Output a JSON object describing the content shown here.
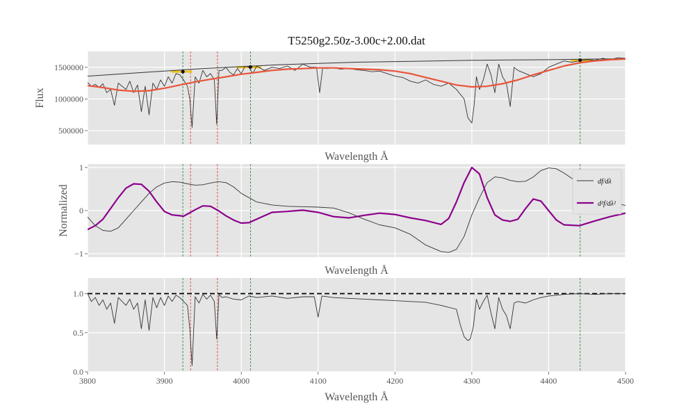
{
  "chart_data": {
    "type": "line",
    "title": "T5250g2.50z-3.00c+2.00.dat",
    "xlim": [
      3800,
      4500
    ],
    "xticks": [
      3800,
      3900,
      4000,
      4100,
      4200,
      4300,
      4400,
      4500
    ],
    "grid": true,
    "marker_lines": {
      "green": [
        3924,
        4012,
        4441
      ],
      "red": [
        3934,
        3969
      ]
    },
    "panels": [
      {
        "id": "flux",
        "ylabel": "Flux",
        "xlabel": "Wavelength Å",
        "ylim": [
          280000,
          1750000
        ],
        "yticks": [
          500000,
          1000000,
          1500000
        ],
        "ytick_labels": [
          "500000",
          "1000000",
          "1500000"
        ],
        "series": [
          {
            "key": "spectrum",
            "color": "#333333",
            "width": 0.9,
            "x": [
              3800,
              3805,
              3810,
              3815,
              3820,
              3825,
              3830,
              3835,
              3840,
              3845,
              3850,
              3855,
              3860,
              3865,
              3870,
              3875,
              3880,
              3885,
              3890,
              3895,
              3900,
              3905,
              3910,
              3915,
              3920,
              3925,
              3930,
              3933,
              3936,
              3940,
              3945,
              3950,
              3955,
              3960,
              3965,
              3968,
              3971,
              3975,
              3980,
              3985,
              3990,
              3995,
              4000,
              4005,
              4010,
              4015,
              4020,
              4030,
              4040,
              4050,
              4060,
              4070,
              4080,
              4090,
              4098,
              4102,
              4106,
              4110,
              4120,
              4130,
              4140,
              4150,
              4160,
              4170,
              4180,
              4190,
              4200,
              4210,
              4220,
              4230,
              4240,
              4250,
              4260,
              4270,
              4280,
              4290,
              4295,
              4300,
              4303,
              4306,
              4310,
              4315,
              4320,
              4325,
              4330,
              4335,
              4340,
              4345,
              4350,
              4355,
              4360,
              4370,
              4380,
              4390,
              4400,
              4410,
              4420,
              4430,
              4440,
              4450,
              4460,
              4470,
              4480,
              4490,
              4500
            ],
            "y": [
              1260000,
              1200000,
              1230000,
              1180000,
              1240000,
              1100000,
              1150000,
              900000,
              1250000,
              1200000,
              1150000,
              1280000,
              1100000,
              1220000,
              800000,
              1200000,
              750000,
              1250000,
              1150000,
              1300000,
              1200000,
              1350000,
              1250000,
              1400000,
              1380000,
              1300000,
              1200000,
              1000000,
              550000,
              1350000,
              1250000,
              1450000,
              1350000,
              1400000,
              1300000,
              600000,
              1450000,
              1450000,
              1500000,
              1420000,
              1380000,
              1480000,
              1400000,
              1520000,
              1500000,
              1400000,
              1520000,
              1450000,
              1500000,
              1480000,
              1520000,
              1450000,
              1550000,
              1500000,
              1500000,
              1100000,
              1490000,
              1480000,
              1490000,
              1470000,
              1480000,
              1460000,
              1450000,
              1430000,
              1440000,
              1400000,
              1360000,
              1340000,
              1280000,
              1250000,
              1300000,
              1230000,
              1200000,
              1250000,
              1150000,
              1000000,
              700000,
              620000,
              900000,
              1350000,
              1150000,
              1300000,
              1550000,
              1380000,
              1100000,
              1550000,
              1350000,
              1250000,
              880000,
              1500000,
              1450000,
              1400000,
              1350000,
              1400000,
              1500000,
              1550000,
              1600000,
              1580000,
              1600000,
              1620000,
              1610000,
              1640000,
              1620000,
              1650000,
              1640000
            ]
          },
          {
            "key": "envelope",
            "color": "#333333",
            "width": 1.0,
            "x": [
              3800,
              3850,
              3900,
              3950,
              4000,
              4050,
              4100,
              4150,
              4200,
              4250,
              4300,
              4350,
              4400,
              4450,
              4500
            ],
            "y": [
              1360000,
              1400000,
              1440000,
              1480000,
              1510000,
              1540000,
              1560000,
              1580000,
              1590000,
              1600000,
              1610000,
              1615000,
              1620000,
              1628000,
              1635000
            ]
          },
          {
            "key": "continuum_fit",
            "color": "#e8543a",
            "width": 2.2,
            "x": [
              3800,
              3820,
              3840,
              3860,
              3880,
              3900,
              3920,
              3940,
              3960,
              3980,
              4000,
              4020,
              4040,
              4060,
              4080,
              4100,
              4120,
              4140,
              4160,
              4180,
              4200,
              4220,
              4240,
              4260,
              4280,
              4300,
              4320,
              4340,
              4360,
              4380,
              4400,
              4420,
              4440,
              4460,
              4480,
              4500
            ],
            "y": [
              1210000,
              1180000,
              1140000,
              1120000,
              1130000,
              1170000,
              1220000,
              1270000,
              1310000,
              1350000,
              1390000,
              1420000,
              1450000,
              1470000,
              1480000,
              1490000,
              1490000,
              1480000,
              1470000,
              1460000,
              1440000,
              1400000,
              1340000,
              1280000,
              1220000,
              1190000,
              1200000,
              1240000,
              1300000,
              1380000,
              1450000,
              1520000,
              1570000,
              1600000,
              1620000,
              1630000
            ]
          }
        ],
        "highlights": [
          {
            "x": [
              3910,
              3935
            ],
            "y": 1430000,
            "color": "#f0c419"
          },
          {
            "x": [
              3995,
              4025
            ],
            "y": 1500000,
            "color": "#f0c419"
          },
          {
            "x": [
              4430,
              4455
            ],
            "y": 1610000,
            "color": "#f0c419"
          }
        ],
        "points": [
          {
            "x": 3924,
            "y": 1430000
          },
          {
            "x": 4012,
            "y": 1505000
          },
          {
            "x": 4441,
            "y": 1612000
          }
        ]
      },
      {
        "id": "derivatives",
        "ylabel": "Normalized",
        "xlabel": "Wavelength Å",
        "ylim": [
          -1.08,
          1.08
        ],
        "yticks": [
          -1,
          0,
          1
        ],
        "ytick_labels": [
          "−1",
          "0",
          "1"
        ],
        "series": [
          {
            "key": "df",
            "name": "df/dλ",
            "color": "#333333",
            "width": 0.9,
            "x": [
              3800,
              3810,
              3820,
              3830,
              3840,
              3850,
              3860,
              3870,
              3880,
              3890,
              3900,
              3910,
              3920,
              3930,
              3940,
              3950,
              3960,
              3970,
              3980,
              3990,
              4000,
              4020,
              4040,
              4060,
              4080,
              4100,
              4120,
              4140,
              4160,
              4180,
              4200,
              4220,
              4240,
              4260,
              4270,
              4280,
              4290,
              4300,
              4310,
              4320,
              4330,
              4340,
              4350,
              4360,
              4370,
              4380,
              4390,
              4400,
              4410,
              4420,
              4430,
              4440,
              4450,
              4460,
              4480,
              4500
            ],
            "y": [
              -0.15,
              -0.35,
              -0.46,
              -0.48,
              -0.4,
              -0.2,
              0.0,
              0.2,
              0.4,
              0.55,
              0.64,
              0.67,
              0.66,
              0.62,
              0.59,
              0.6,
              0.64,
              0.67,
              0.65,
              0.55,
              0.4,
              0.2,
              0.13,
              0.1,
              0.09,
              0.08,
              0.06,
              -0.05,
              -0.2,
              -0.33,
              -0.4,
              -0.55,
              -0.8,
              -0.95,
              -0.97,
              -0.9,
              -0.6,
              -0.1,
              0.3,
              0.65,
              0.78,
              0.76,
              0.7,
              0.67,
              0.68,
              0.78,
              0.93,
              0.99,
              0.97,
              0.87,
              0.75,
              0.55,
              0.4,
              0.3,
              0.2,
              0.12
            ]
          },
          {
            "key": "d2f",
            "name": "d²f/dλ²",
            "color": "#8b008b",
            "width": 2.2,
            "x": [
              3800,
              3810,
              3820,
              3830,
              3840,
              3850,
              3860,
              3870,
              3880,
              3890,
              3900,
              3910,
              3920,
              3925,
              3930,
              3940,
              3950,
              3960,
              3970,
              3980,
              3990,
              4000,
              4010,
              4020,
              4040,
              4060,
              4080,
              4100,
              4120,
              4140,
              4160,
              4180,
              4200,
              4220,
              4240,
              4260,
              4270,
              4280,
              4290,
              4300,
              4310,
              4320,
              4330,
              4340,
              4350,
              4360,
              4370,
              4380,
              4390,
              4400,
              4410,
              4420,
              4440,
              4460,
              4480,
              4500
            ],
            "y": [
              -0.44,
              -0.35,
              -0.2,
              0.05,
              0.3,
              0.52,
              0.62,
              0.61,
              0.45,
              0.2,
              -0.02,
              -0.1,
              -0.12,
              -0.13,
              -0.08,
              0.02,
              0.11,
              0.1,
              0.0,
              -0.12,
              -0.22,
              -0.29,
              -0.28,
              -0.2,
              -0.04,
              -0.02,
              0.01,
              -0.04,
              -0.14,
              -0.17,
              -0.11,
              -0.06,
              -0.09,
              -0.17,
              -0.23,
              -0.32,
              -0.18,
              0.2,
              0.65,
              1.0,
              0.85,
              0.3,
              -0.1,
              -0.22,
              -0.25,
              -0.2,
              0.05,
              0.27,
              0.22,
              0.0,
              -0.22,
              -0.33,
              -0.35,
              -0.24,
              -0.14,
              -0.06
            ]
          }
        ],
        "legend": {
          "position": "right",
          "entries": [
            "df/dλ",
            "d²f/dλ²"
          ]
        }
      },
      {
        "id": "normalized",
        "ylabel": "",
        "xlabel": "Wavelength Å",
        "ylim": [
          0.0,
          1.2
        ],
        "yticks": [
          0.0,
          0.5,
          1.0
        ],
        "ytick_labels": [
          "0.0",
          "0.5",
          "1.0"
        ],
        "reference_line": {
          "y": 1.0,
          "color": "#000000",
          "style": "dashed"
        },
        "series": [
          {
            "key": "normalized_flux",
            "color": "#333333",
            "width": 0.9,
            "x": [
              3800,
              3805,
              3810,
              3815,
              3820,
              3825,
              3830,
              3835,
              3840,
              3845,
              3850,
              3855,
              3860,
              3865,
              3870,
              3875,
              3880,
              3885,
              3890,
              3895,
              3900,
              3905,
              3910,
              3915,
              3920,
              3925,
              3930,
              3933,
              3936,
              3940,
              3945,
              3950,
              3955,
              3960,
              3965,
              3968,
              3971,
              3975,
              3980,
              3990,
              4000,
              4010,
              4020,
              4040,
              4060,
              4080,
              4095,
              4100,
              4105,
              4120,
              4140,
              4160,
              4180,
              4200,
              4220,
              4240,
              4260,
              4280,
              4285,
              4290,
              4295,
              4298,
              4302,
              4306,
              4310,
              4315,
              4320,
              4325,
              4330,
              4335,
              4340,
              4345,
              4350,
              4355,
              4360,
              4370,
              4380,
              4390,
              4400,
              4420,
              4440,
              4460,
              4480,
              4500
            ],
            "y": [
              1.0,
              0.9,
              0.95,
              0.85,
              0.92,
              0.8,
              0.88,
              0.62,
              0.95,
              0.9,
              0.85,
              0.93,
              0.8,
              0.88,
              0.55,
              0.92,
              0.53,
              0.95,
              0.82,
              0.95,
              0.85,
              0.97,
              0.9,
              0.98,
              0.95,
              0.9,
              0.85,
              0.55,
              0.08,
              0.96,
              0.88,
              0.99,
              0.93,
              0.98,
              0.9,
              0.42,
              0.99,
              0.95,
              0.96,
              0.93,
              0.92,
              0.97,
              0.95,
              0.97,
              0.94,
              0.96,
              0.96,
              0.7,
              0.97,
              0.95,
              0.94,
              0.93,
              0.92,
              0.91,
              0.9,
              0.89,
              0.85,
              0.8,
              0.6,
              0.45,
              0.4,
              0.42,
              0.58,
              0.93,
              0.8,
              0.9,
              0.98,
              0.75,
              0.55,
              0.95,
              0.8,
              0.72,
              0.55,
              0.88,
              0.9,
              0.88,
              0.92,
              0.95,
              0.97,
              0.99,
              1.0,
              0.99,
              1.0,
              1.0
            ]
          }
        ]
      }
    ]
  }
}
